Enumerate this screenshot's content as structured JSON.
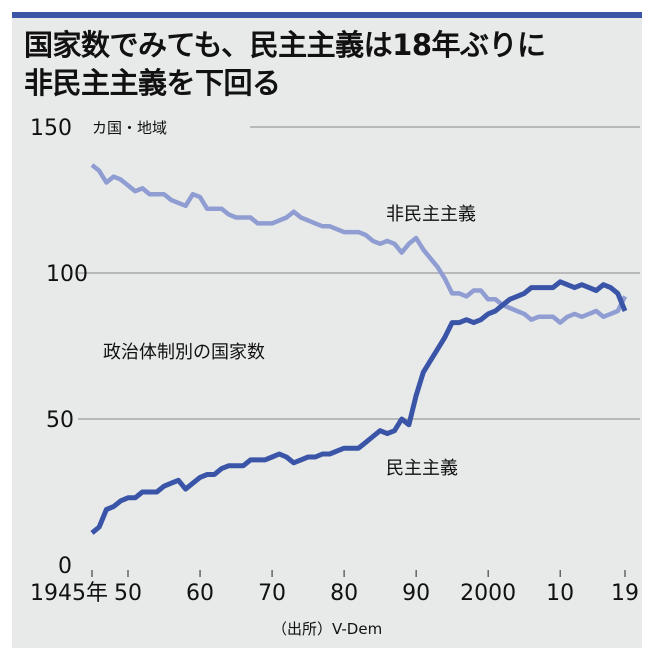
{
  "title_line1": "国家数でみても、民主主義は18年ぶりに",
  "title_line2": "非民主主義を下回る",
  "colors": {
    "democracy": "#3a55a8",
    "non_democracy": "#8f9dd2",
    "accent": "#3d55a6",
    "background": "#e8eae9"
  },
  "chart_data": {
    "type": "line",
    "title": "国家数でみても、民主主義は18年ぶりに非民主主義を下回る",
    "subtitle": "政治体制別の国家数",
    "ylabel": "カ国・地域",
    "xlabel": "",
    "source": "（出所）V-Dem",
    "ylim": [
      0,
      150
    ],
    "xlim": [
      1945,
      2019
    ],
    "yticks": [
      0,
      50,
      100,
      150
    ],
    "xticks": [
      {
        "value": 1945,
        "label": "1945年"
      },
      {
        "value": 1950,
        "label": "50"
      },
      {
        "value": 1960,
        "label": "60"
      },
      {
        "value": 1970,
        "label": "70"
      },
      {
        "value": 1980,
        "label": "80"
      },
      {
        "value": 1990,
        "label": "90"
      },
      {
        "value": 2000,
        "label": "2000"
      },
      {
        "value": 2010,
        "label": "10"
      },
      {
        "value": 2019,
        "label": "19"
      }
    ],
    "grid": true,
    "x_start": 1945,
    "series": [
      {
        "name": "非民主主義",
        "key": "non_democracy",
        "values": [
          137,
          135,
          131,
          133,
          132,
          130,
          128,
          129,
          127,
          127,
          127,
          125,
          124,
          123,
          127,
          126,
          122,
          122,
          122,
          120,
          119,
          119,
          119,
          117,
          117,
          117,
          118,
          119,
          121,
          119,
          118,
          117,
          116,
          116,
          115,
          114,
          114,
          114,
          113,
          111,
          110,
          111,
          110,
          107,
          110,
          112,
          108,
          105,
          102,
          98,
          93,
          93,
          92,
          94,
          94,
          91,
          91,
          89,
          88,
          87,
          86,
          84,
          85,
          85,
          85,
          83,
          85,
          86,
          85,
          86,
          87,
          85,
          86,
          87,
          92
        ]
      },
      {
        "name": "民主主義",
        "key": "democracy",
        "values": [
          11,
          13,
          19,
          20,
          22,
          23,
          23,
          25,
          25,
          25,
          27,
          28,
          29,
          26,
          28,
          30,
          31,
          31,
          33,
          34,
          34,
          34,
          36,
          36,
          36,
          37,
          38,
          37,
          35,
          36,
          37,
          37,
          38,
          38,
          39,
          40,
          40,
          40,
          42,
          44,
          46,
          45,
          46,
          50,
          48,
          58,
          66,
          70,
          74,
          78,
          83,
          83,
          84,
          83,
          84,
          86,
          87,
          89,
          91,
          92,
          93,
          95,
          95,
          95,
          95,
          97,
          96,
          95,
          96,
          95,
          94,
          96,
          95,
          93,
          87
        ]
      }
    ]
  }
}
